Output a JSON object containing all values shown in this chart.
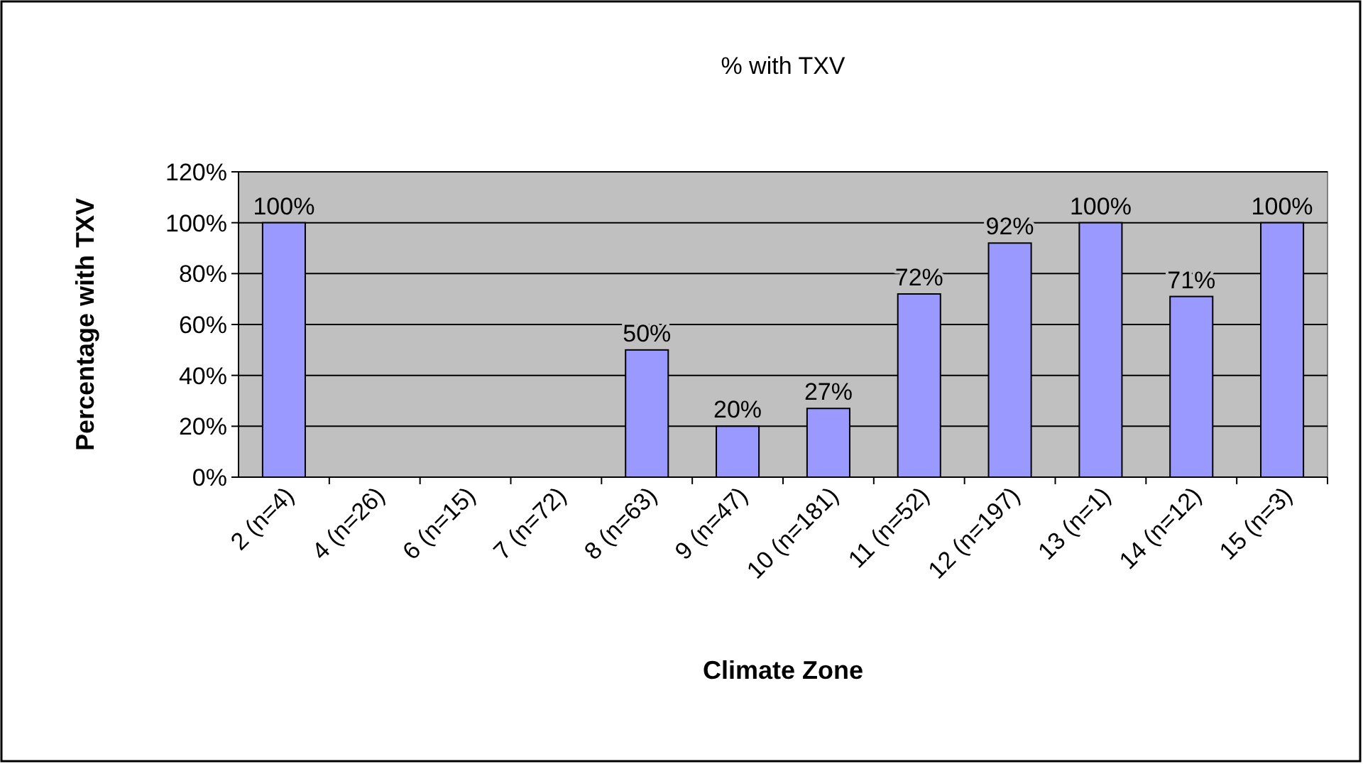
{
  "chart_data": {
    "type": "bar",
    "title": "% with TXV",
    "xlabel": "Climate Zone",
    "ylabel": "Percentage with TXV",
    "categories": [
      "2 (n=4)",
      "4 (n=26)",
      "6 (n=15)",
      "7 (n=72)",
      "8 (n=63)",
      "9 (n=47)",
      "10 (n=181)",
      "11 (n=52)",
      "12 (n=197)",
      "13 (n=1)",
      "14 (n=12)",
      "15 (n=3)"
    ],
    "values": [
      100,
      null,
      null,
      null,
      50,
      20,
      27,
      72,
      92,
      100,
      71,
      100
    ],
    "value_labels": [
      "100%",
      null,
      null,
      null,
      "50%",
      "20%",
      "27%",
      "72%",
      "92%",
      "100%",
      "71%",
      "100%"
    ],
    "color": "#9999ff",
    "ylim": [
      0,
      120
    ],
    "yticks": [
      {
        "value": 0,
        "label": "0%"
      },
      {
        "value": 20,
        "label": "20%"
      },
      {
        "value": 40,
        "label": "40%"
      },
      {
        "value": 60,
        "label": "60%"
      },
      {
        "value": 80,
        "label": "80%"
      },
      {
        "value": 100,
        "label": "100%"
      },
      {
        "value": 120,
        "label": "120%"
      }
    ],
    "grid": "y"
  }
}
